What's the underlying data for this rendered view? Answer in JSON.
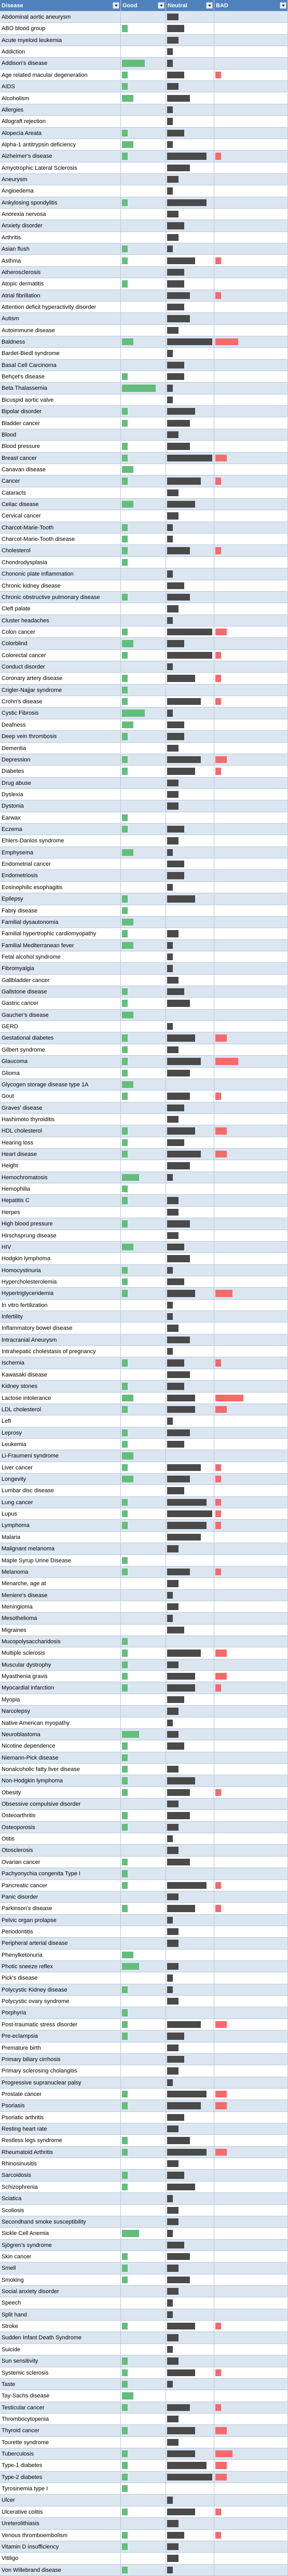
{
  "table": {
    "columns": [
      "Disease",
      "Good",
      "Neutral",
      "BAD"
    ],
    "bar_colors": [
      "#63be7b",
      "#4a4a4a",
      "#f8696b"
    ],
    "rows": [
      [
        "Abdominal aortic aneurysm",
        0,
        2,
        0
      ],
      [
        "ABO blood group",
        1,
        3,
        0
      ],
      [
        "Acute myeloid leukemia",
        0,
        2,
        0
      ],
      [
        "Addiction",
        0,
        1,
        0
      ],
      [
        "Addison's disease",
        4,
        1,
        0
      ],
      [
        "Age related macular degeneration",
        1,
        3,
        1
      ],
      [
        "AIDS",
        1,
        2,
        0
      ],
      [
        "Alcoholism",
        2,
        4,
        0
      ],
      [
        "Allergies",
        0,
        1,
        0
      ],
      [
        "Allograft rejection",
        0,
        1,
        0
      ],
      [
        "Alopecia Areata",
        1,
        3,
        0
      ],
      [
        "Alpha-1 antitrypsin deficiency",
        2,
        1,
        0
      ],
      [
        "Alzheimer's disease",
        1,
        7,
        1
      ],
      [
        "Amyotrophic Lateral Sclerosis",
        0,
        4,
        0
      ],
      [
        "Aneurysm",
        0,
        2,
        0
      ],
      [
        "Angioedema",
        0,
        1,
        0
      ],
      [
        "Ankylosing spondylitis",
        1,
        7,
        0
      ],
      [
        "Anorexia nervosa",
        0,
        2,
        0
      ],
      [
        "Anxiety disorder",
        0,
        3,
        0
      ],
      [
        "Arthritis",
        0,
        2,
        0
      ],
      [
        "Asian flush",
        1,
        1,
        0
      ],
      [
        "Asthma",
        1,
        5,
        1
      ],
      [
        "Atherosclerosis",
        0,
        3,
        0
      ],
      [
        "Atopic dermatitis",
        1,
        3,
        0
      ],
      [
        "Atrial fibrillation",
        0,
        4,
        1
      ],
      [
        "Attention deficit hyperactivity disorder",
        0,
        3,
        0
      ],
      [
        "Autism",
        0,
        4,
        0
      ],
      [
        "Autoimmune disease",
        0,
        2,
        0
      ],
      [
        "Baldness",
        2,
        8,
        4
      ],
      [
        "Bardet-Biedl syndrome",
        0,
        1,
        0
      ],
      [
        "Basal Cell Carcinoma",
        0,
        3,
        0
      ],
      [
        "Behçet's disease",
        1,
        3,
        0
      ],
      [
        "Beta Thalassemia",
        6,
        1,
        0
      ],
      [
        "Bicuspid aortic valve",
        0,
        1,
        0
      ],
      [
        "Bipolar disorder",
        1,
        5,
        0
      ],
      [
        "Bladder cancer",
        1,
        4,
        0
      ],
      [
        "Blood",
        0,
        2,
        0
      ],
      [
        "Blood pressure",
        1,
        4,
        0
      ],
      [
        "Breast cancer",
        1,
        8,
        2
      ],
      [
        "Canavan disease",
        2,
        0,
        0
      ],
      [
        "Cancer",
        1,
        6,
        1
      ],
      [
        "Cataracts",
        0,
        2,
        0
      ],
      [
        "Celiac disease",
        2,
        5,
        0
      ],
      [
        "Cervical cancer",
        0,
        2,
        0
      ],
      [
        "Charcot-Marie-Tooth",
        1,
        1,
        0
      ],
      [
        "Charcot-Marie-Tooth disease",
        1,
        1,
        0
      ],
      [
        "Cholesterol",
        1,
        4,
        1
      ],
      [
        "Chondrodysplasia",
        1,
        0,
        0
      ],
      [
        "Chononic plate inflammation",
        0,
        1,
        0
      ],
      [
        "Chronic kidney disease",
        0,
        3,
        0
      ],
      [
        "Chronic obstructive pulmonary disease",
        1,
        4,
        0
      ],
      [
        "Cleft palate",
        0,
        2,
        0
      ],
      [
        "Cluster headaches",
        0,
        1,
        0
      ],
      [
        "Colon cancer",
        1,
        8,
        2
      ],
      [
        "Colorblind",
        2,
        3,
        0
      ],
      [
        "Colorectal cancer",
        1,
        8,
        1
      ],
      [
        "Conduct disorder",
        0,
        1,
        0
      ],
      [
        "Coronary artery disease",
        1,
        5,
        1
      ],
      [
        "Crigler-Najjar syndrome",
        1,
        0,
        0
      ],
      [
        "Crohn's disease",
        1,
        6,
        1
      ],
      [
        "Cystic Fibrosis",
        4,
        1,
        0
      ],
      [
        "Deafness",
        2,
        3,
        0
      ],
      [
        "Deep vein thrombosis",
        1,
        3,
        0
      ],
      [
        "Dementia",
        0,
        2,
        0
      ],
      [
        "Depression",
        1,
        6,
        2
      ],
      [
        "Diabetes",
        1,
        5,
        1
      ],
      [
        "Drug abuse",
        0,
        2,
        0
      ],
      [
        "Dyslexia",
        0,
        2,
        0
      ],
      [
        "Dystonia",
        0,
        2,
        0
      ],
      [
        "Earwax",
        1,
        0,
        0
      ],
      [
        "Eczema",
        1,
        3,
        0
      ],
      [
        "Ehlers-Danlos syndrome",
        0,
        2,
        0
      ],
      [
        "Emphysema",
        2,
        1,
        0
      ],
      [
        "Endometrial cancer",
        0,
        3,
        0
      ],
      [
        "Endometriosis",
        0,
        3,
        0
      ],
      [
        "Eosinophilic esophagitis",
        0,
        1,
        0
      ],
      [
        "Epilepsy",
        1,
        5,
        0
      ],
      [
        "Fabry disease",
        1,
        0,
        0
      ],
      [
        "Familial dysautonomia",
        2,
        0,
        0
      ],
      [
        "Familial hypertrophic cardiomyopathy",
        1,
        2,
        0
      ],
      [
        "Familial Mediterranean fever",
        2,
        1,
        0
      ],
      [
        "Fetal alcohol syndrome",
        0,
        1,
        0
      ],
      [
        "Fibromyalgia",
        0,
        1,
        0
      ],
      [
        "Gallbladder cancer",
        0,
        2,
        0
      ],
      [
        "Gallstone disease",
        1,
        3,
        0
      ],
      [
        "Gastric cancer",
        1,
        4,
        0
      ],
      [
        "Gaucher's disease",
        2,
        0,
        0
      ],
      [
        "GERD",
        0,
        1,
        0
      ],
      [
        "Gestational diabetes",
        1,
        5,
        2
      ],
      [
        "Gilbert syndrome",
        1,
        2,
        0
      ],
      [
        "Glaucoma",
        1,
        6,
        4
      ],
      [
        "Glioma",
        1,
        4,
        0
      ],
      [
        "Glycogen storage disease type 1A",
        2,
        0,
        0
      ],
      [
        "Gout",
        1,
        4,
        1
      ],
      [
        "Graves' disease",
        0,
        3,
        0
      ],
      [
        "Hashimoto thyroiditis",
        0,
        2,
        0
      ],
      [
        "HDL cholesterol",
        1,
        5,
        2
      ],
      [
        "Hearing loss",
        1,
        3,
        0
      ],
      [
        "Heart disease",
        1,
        6,
        2
      ],
      [
        "Height",
        0,
        4,
        0
      ],
      [
        "Hemochromatosis",
        3,
        1,
        0
      ],
      [
        "Hemophilia",
        1,
        0,
        0
      ],
      [
        "Hepatitis C",
        1,
        2,
        0
      ],
      [
        "Herpes",
        0,
        2,
        0
      ],
      [
        "High blood pressure",
        1,
        4,
        0
      ],
      [
        "Hirschsprung disease",
        0,
        2,
        0
      ],
      [
        "HIV",
        2,
        3,
        0
      ],
      [
        "Hodgkin lymphoma",
        0,
        4,
        0
      ],
      [
        "Homocystinuria",
        1,
        1,
        0
      ],
      [
        "Hypercholesterolemia",
        1,
        3,
        0
      ],
      [
        "Hypertriglyceridemia",
        1,
        5,
        3
      ],
      [
        "In vitro fertilization",
        0,
        1,
        0
      ],
      [
        "Infertility",
        0,
        1,
        0
      ],
      [
        "Inflammatory bowel disease",
        0,
        2,
        0
      ],
      [
        "Intracranial Aneurysm",
        0,
        4,
        0
      ],
      [
        "Intrahepatic cholestasis of pregnancy",
        0,
        1,
        0
      ],
      [
        "Ischemia",
        1,
        3,
        1
      ],
      [
        "Kawasaki disease",
        0,
        4,
        0
      ],
      [
        "Kidney stones",
        1,
        3,
        0
      ],
      [
        "Lactose intolerance",
        2,
        5,
        5
      ],
      [
        "LDL cholesterol",
        1,
        5,
        2
      ],
      [
        "Left",
        0,
        1,
        0
      ],
      [
        "Leprosy",
        1,
        4,
        0
      ],
      [
        "Leukemia",
        1,
        3,
        0
      ],
      [
        "Li-Fraumeni syndrome",
        2,
        0,
        0
      ],
      [
        "Liver cancer",
        1,
        6,
        1
      ],
      [
        "Longevity",
        2,
        4,
        1
      ],
      [
        "Lumbar disc disease",
        0,
        3,
        0
      ],
      [
        "Lung cancer",
        1,
        7,
        1
      ],
      [
        "Lupus",
        1,
        8,
        1
      ],
      [
        "Lymphoma",
        1,
        7,
        1
      ],
      [
        "Malaria",
        0,
        6,
        0
      ],
      [
        "Malignant melanoma",
        0,
        2,
        0
      ],
      [
        "Maple Syrup Urine Disease",
        1,
        0,
        0
      ],
      [
        "Melanoma",
        1,
        4,
        1
      ],
      [
        "Menarche, age at",
        0,
        2,
        0
      ],
      [
        "Meniere's disease",
        0,
        1,
        0
      ],
      [
        "Meningioma",
        0,
        2,
        0
      ],
      [
        "Mesothelioma",
        0,
        1,
        0
      ],
      [
        "Migraines",
        0,
        3,
        0
      ],
      [
        "Mucopolysaccharidosis",
        1,
        0,
        0
      ],
      [
        "Multiple sclerosis",
        1,
        6,
        2
      ],
      [
        "Muscular dystrophy",
        1,
        2,
        0
      ],
      [
        "Myasthenia gravis",
        1,
        5,
        2
      ],
      [
        "Myocardial infarction",
        1,
        5,
        1
      ],
      [
        "Myopia",
        0,
        3,
        0
      ],
      [
        "Narcolepsy",
        0,
        2,
        0
      ],
      [
        "Native American myopathy",
        0,
        1,
        0
      ],
      [
        "Neuroblastoma",
        3,
        2,
        0
      ],
      [
        "Nicotine dependence",
        1,
        3,
        0
      ],
      [
        "Niemann-Pick disease",
        1,
        0,
        0
      ],
      [
        "Nonalcoholic fatty liver disease",
        1,
        2,
        0
      ],
      [
        "Non-Hodgkin lymphoma",
        1,
        5,
        0
      ],
      [
        "Obesity",
        1,
        4,
        1
      ],
      [
        "Obsessive compulsive disorder",
        0,
        2,
        0
      ],
      [
        "Osteoarthritis",
        1,
        4,
        0
      ],
      [
        "Osteoporosis",
        1,
        2,
        0
      ],
      [
        "Otitis",
        0,
        1,
        0
      ],
      [
        "Otosclerosis",
        0,
        2,
        0
      ],
      [
        "Ovarian cancer",
        1,
        4,
        0
      ],
      [
        "Pachyonychia congenita Type I",
        1,
        0,
        0
      ],
      [
        "Pancreatic cancer",
        1,
        7,
        1
      ],
      [
        "Panic disorder",
        0,
        2,
        0
      ],
      [
        "Parkinson's disease",
        1,
        5,
        1
      ],
      [
        "Pelvic organ prolapse",
        0,
        1,
        0
      ],
      [
        "Periodontitis",
        0,
        2,
        0
      ],
      [
        "Peripheral arterial disease",
        0,
        2,
        0
      ],
      [
        "Phenylketonuria",
        2,
        0,
        0
      ],
      [
        "Photic sneeze reflex",
        3,
        2,
        0
      ],
      [
        "Pick's disease",
        0,
        1,
        0
      ],
      [
        "Polycystic Kidney disease",
        1,
        1,
        0
      ],
      [
        "Polycystic ovary syndrome",
        0,
        2,
        0
      ],
      [
        "Porphyria",
        1,
        0,
        0
      ],
      [
        "Post-traumatic stress disorder",
        1,
        6,
        2
      ],
      [
        "Pre-eclampsia",
        1,
        3,
        0
      ],
      [
        "Premature birth",
        0,
        2,
        0
      ],
      [
        "Primary biliary cirrhosis",
        0,
        3,
        0
      ],
      [
        "Primary sclerosing cholangitis",
        0,
        2,
        0
      ],
      [
        "Progressive supranuclear palsy",
        0,
        1,
        0
      ],
      [
        "Prostate cancer",
        1,
        7,
        2
      ],
      [
        "Psoriasis",
        1,
        6,
        2
      ],
      [
        "Psoriatic arthritis",
        0,
        3,
        0
      ],
      [
        "Resting heart rate",
        0,
        2,
        0
      ],
      [
        "Restless legs syndrome",
        1,
        4,
        0
      ],
      [
        "Rheumatoid Arthritis",
        1,
        7,
        2
      ],
      [
        "Rhinosinusitis",
        0,
        2,
        0
      ],
      [
        "Sarcoidosis",
        1,
        3,
        0
      ],
      [
        "Schizophrenia",
        1,
        5,
        0
      ],
      [
        "Sciatica",
        0,
        1,
        0
      ],
      [
        "Scoliosis",
        0,
        2,
        0
      ],
      [
        "Secondhand smoke susceptibility",
        0,
        2,
        0
      ],
      [
        "Sickle Cell Anemia",
        3,
        1,
        0
      ],
      [
        "Sjögren's syndrome",
        0,
        3,
        0
      ],
      [
        "Skin cancer",
        1,
        4,
        0
      ],
      [
        "Smell",
        1,
        2,
        0
      ],
      [
        "Smoking",
        1,
        4,
        0
      ],
      [
        "Social anxiety disorder",
        0,
        2,
        0
      ],
      [
        "Speech",
        0,
        1,
        0
      ],
      [
        "Split hand",
        0,
        1,
        0
      ],
      [
        "Stroke",
        1,
        5,
        1
      ],
      [
        "Sudden Infant Death Syndrome",
        0,
        2,
        0
      ],
      [
        "Suicide",
        0,
        1,
        0
      ],
      [
        "Sun sensitivity",
        1,
        2,
        0
      ],
      [
        "Systemic sclerosis",
        1,
        5,
        1
      ],
      [
        "Taste",
        1,
        1,
        0
      ],
      [
        "Tay-Sachs disease",
        2,
        0,
        0
      ],
      [
        "Testicular cancer",
        1,
        4,
        1
      ],
      [
        "Thrombocytopenia",
        0,
        2,
        0
      ],
      [
        "Thyroid cancer",
        1,
        5,
        2
      ],
      [
        "Tourette syndrome",
        0,
        2,
        0
      ],
      [
        "Tuberculosis",
        1,
        5,
        3
      ],
      [
        "Type-1 diabetes",
        1,
        7,
        2
      ],
      [
        "Type-2 diabetes",
        1,
        8,
        2
      ],
      [
        "Tyrosinemia type I",
        1,
        0,
        0
      ],
      [
        "Ulcer",
        0,
        1,
        0
      ],
      [
        "Ulcerative colitis",
        1,
        5,
        1
      ],
      [
        "Ureterolithiasis",
        0,
        2,
        0
      ],
      [
        "Venous thromboembolism",
        1,
        3,
        1
      ],
      [
        "Vitamin D insufficiency",
        1,
        2,
        0
      ],
      [
        "Vitiligo",
        0,
        2,
        0
      ],
      [
        "Von Willebrand disease",
        1,
        1,
        0
      ]
    ]
  }
}
